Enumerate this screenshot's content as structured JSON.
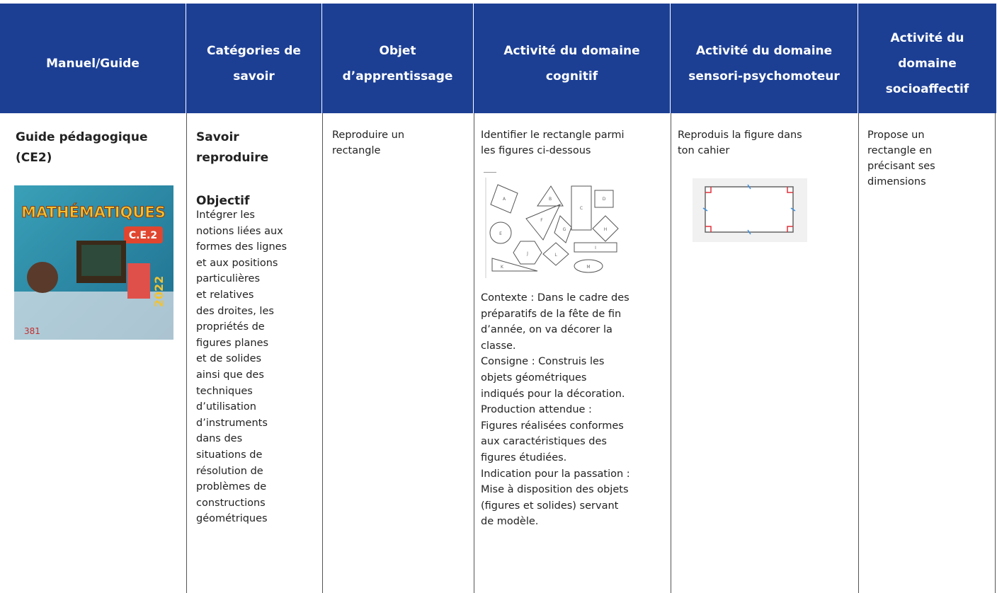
{
  "table": {
    "headers": [
      [
        "Manuel/Guide"
      ],
      [
        "Catégories de",
        "savoir"
      ],
      [
        "Objet",
        "d’apprentissage"
      ],
      [
        "Activité du domaine",
        "cognitif"
      ],
      [
        "Activité du domaine",
        "sensori-psychomoteur"
      ],
      [
        "Activité du",
        "domaine",
        "socioaffectif"
      ]
    ],
    "row": {
      "manual": {
        "title": [
          "Guide pédagogique",
          "(CE2)"
        ],
        "cover": {
          "title": "MATHÉMATIQUES",
          "level": "C.E.2",
          "year": "2022",
          "number": "381"
        }
      },
      "category": {
        "title": [
          "Savoir",
          "reproduire"
        ],
        "objective_heading": "Objectif",
        "objective": [
          "Intégrer les",
          "notions liées aux",
          "formes des lignes",
          "et aux positions",
          "particulières",
          "et relatives",
          "des droites, les",
          "propriétés de",
          "figures planes",
          "et de solides",
          "ainsi que des",
          "techniques",
          "d’utilisation",
          "d’instruments",
          "dans des",
          "situations de",
          "résolution de",
          "problèmes de",
          "constructions",
          "géométriques"
        ]
      },
      "object": [
        "Reproduire un",
        "rectangle"
      ],
      "cognitive": {
        "instruction": [
          "Identifier le rectangle parmi",
          "les figures ci-dessous"
        ],
        "figure_labels": [
          "A",
          "B",
          "C",
          "D",
          "E",
          "F",
          "G",
          "H",
          "I",
          "J",
          "K",
          "L",
          "M"
        ],
        "details": [
          "Contexte : Dans le cadre des",
          "préparatifs de la fête de fin",
          "d’année, on va décorer la",
          "classe.",
          "Consigne : Construis les",
          "objets géométriques",
          "indiqués pour la décoration.",
          "Production attendue :",
          "Figures réalisées conformes",
          "aux caractéristiques des",
          "figures étudiées.",
          "Indication pour la passation :",
          "Mise à disposition des objets",
          "(figures et solides) servant",
          "de modèle."
        ]
      },
      "sensori": [
        "Reproduis la figure dans",
        "ton cahier"
      ],
      "socio": [
        "Propose un",
        "rectangle en",
        "précisant ses",
        "dimensions"
      ]
    }
  }
}
